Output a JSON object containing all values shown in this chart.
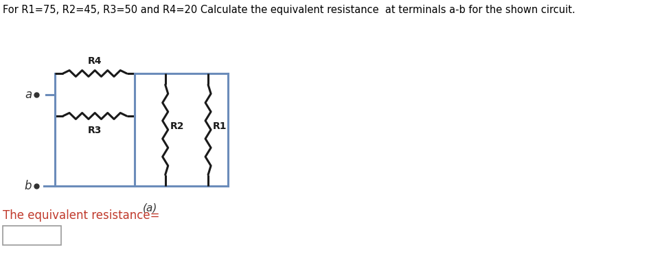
{
  "title": "For R1=75, R2=45, R3=50 and R4=20 Calculate the equivalent resistance  at terminals a-b for the shown circuit.",
  "title_color": "#000000",
  "title_fontsize": 10.5,
  "answer_label": "The equivalent resistance=",
  "answer_label_color": "#c0392b",
  "answer_label_fontsize": 12,
  "label_a": "a",
  "label_b": "b",
  "label_R1": "R1",
  "label_R2": "R2",
  "label_R3": "R3",
  "label_R4": "R4",
  "caption": "(a)",
  "circuit_line_color": "#6b8cba",
  "resistor_color": "#1a1a1a",
  "terminal_color": "#333333",
  "background_color": "#ffffff",
  "line_width": 2.2,
  "resistor_amp": 0.045,
  "resistor_n": 5
}
